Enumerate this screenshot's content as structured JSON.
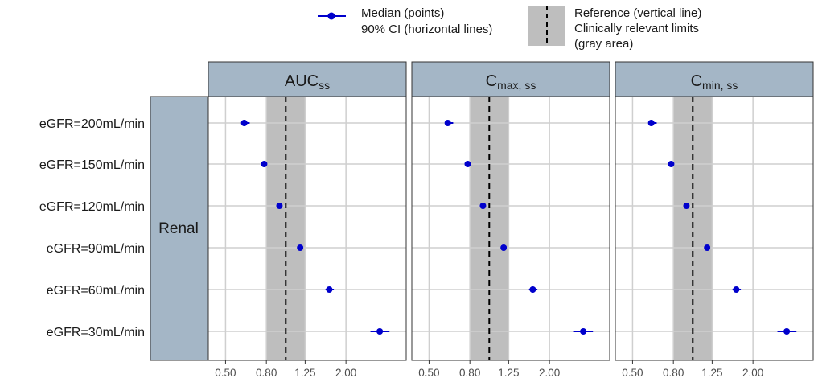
{
  "legend": {
    "median_label": "Median (points)",
    "ci_label": "90% CI (horizontal lines)",
    "reference_label": "Reference (vertical line)",
    "limits_label_line1": "Clinically relevant limits",
    "limits_label_line2": "(gray area)",
    "point_color": "#0000cc",
    "band_color": "#bebebe"
  },
  "chart_data": {
    "type": "forest",
    "x_scale": "log",
    "xlim": [
      0.41,
      4.0
    ],
    "x_ticks": [
      0.5,
      0.8,
      1.25,
      2.0
    ],
    "x_tick_labels": [
      "0.50",
      "0.80",
      "1.25",
      "2.00"
    ],
    "reference_line": 1.0,
    "clinical_limits": [
      0.8,
      1.25
    ],
    "row_strip_label": "Renal",
    "categories": [
      "eGFR=200mL/min",
      "eGFR=150mL/min",
      "eGFR=120mL/min",
      "eGFR=90mL/min",
      "eGFR=60mL/min",
      "eGFR=30mL/min"
    ],
    "panels": [
      {
        "title": "AUC",
        "subscript": "ss",
        "median": [
          0.62,
          0.78,
          0.93,
          1.18,
          1.65,
          2.95
        ],
        "ci_low": [
          0.6,
          0.775,
          0.915,
          1.16,
          1.58,
          2.65
        ],
        "ci_high": [
          0.66,
          0.79,
          0.95,
          1.2,
          1.74,
          3.3
        ]
      },
      {
        "title": "C",
        "subscript": "max, ss",
        "median": [
          0.62,
          0.78,
          0.93,
          1.18,
          1.65,
          2.95
        ],
        "ci_low": [
          0.6,
          0.775,
          0.915,
          1.16,
          1.58,
          2.65
        ],
        "ci_high": [
          0.66,
          0.79,
          0.95,
          1.2,
          1.74,
          3.3
        ]
      },
      {
        "title": "C",
        "subscript": "min, ss",
        "median": [
          0.62,
          0.78,
          0.93,
          1.18,
          1.65,
          2.95
        ],
        "ci_low": [
          0.6,
          0.775,
          0.915,
          1.16,
          1.58,
          2.65
        ],
        "ci_high": [
          0.66,
          0.79,
          0.95,
          1.2,
          1.74,
          3.3
        ]
      }
    ]
  }
}
